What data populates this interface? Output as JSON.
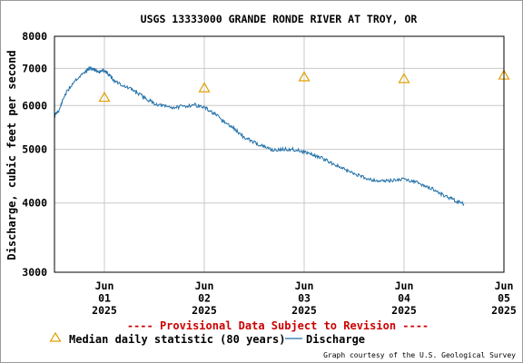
{
  "chart_data": {
    "type": "line",
    "title": "USGS 13333000 GRANDE RONDE RIVER AT TROY, OR",
    "ylabel": "Discharge, cubic feet per second",
    "yscale": "log",
    "ylim": [
      3000,
      8000
    ],
    "yticks": [
      "3000",
      "4000",
      "5000",
      "6000",
      "7000",
      "8000"
    ],
    "xlim": [
      0,
      4.5
    ],
    "xticks": [
      {
        "x": 0.5,
        "lines": [
          "Jun",
          "01",
          "2025"
        ]
      },
      {
        "x": 1.5,
        "lines": [
          "Jun",
          "02",
          "2025"
        ]
      },
      {
        "x": 2.5,
        "lines": [
          "Jun",
          "03",
          "2025"
        ]
      },
      {
        "x": 3.5,
        "lines": [
          "Jun",
          "04",
          "2025"
        ]
      },
      {
        "x": 4.5,
        "lines": [
          "Jun",
          "05",
          "2025"
        ]
      }
    ],
    "grid": true,
    "series": [
      {
        "name": "Discharge",
        "kind": "line",
        "color": "#1f6fa8",
        "x": [
          0.0,
          0.05,
          0.1,
          0.2,
          0.3,
          0.35,
          0.4,
          0.45,
          0.5,
          0.55,
          0.6,
          0.7,
          0.8,
          0.9,
          1.0,
          1.1,
          1.2,
          1.3,
          1.4,
          1.5,
          1.6,
          1.7,
          1.8,
          1.9,
          2.0,
          2.1,
          2.2,
          2.3,
          2.4,
          2.5,
          2.6,
          2.7,
          2.8,
          2.9,
          3.0,
          3.1,
          3.2,
          3.3,
          3.4,
          3.5,
          3.6,
          3.7,
          3.8,
          3.9,
          4.0,
          4.1
        ],
        "values": [
          5750,
          5900,
          6250,
          6650,
          6880,
          7000,
          6970,
          6900,
          6950,
          6800,
          6650,
          6500,
          6380,
          6200,
          6050,
          5980,
          5950,
          5980,
          6020,
          5950,
          5800,
          5600,
          5450,
          5250,
          5150,
          5050,
          4980,
          5000,
          5000,
          4950,
          4880,
          4800,
          4700,
          4600,
          4520,
          4450,
          4400,
          4380,
          4400,
          4420,
          4380,
          4300,
          4230,
          4130,
          4050,
          3980
        ]
      },
      {
        "name": "Median daily statistic (80 years)",
        "kind": "marker",
        "color": "#e0a000",
        "x": [
          0.5,
          1.5,
          2.5,
          3.5,
          4.5
        ],
        "values": [
          6200,
          6450,
          6750,
          6700,
          6800
        ]
      }
    ],
    "annotation": "---- Provisional Data Subject to Revision ----",
    "annotation_color": "#cc0000",
    "credit": "Graph courtesy of the U.S. Geological Survey",
    "legend_placement": "bottom"
  }
}
